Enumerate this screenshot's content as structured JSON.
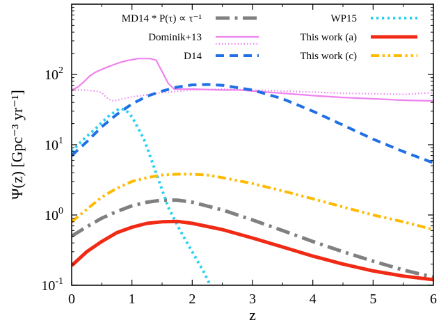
{
  "chart_data": {
    "type": "line",
    "xlabel": "z",
    "ylabel": "Ψ(z) [Gpc⁻³ yr⁻¹]",
    "xlim": [
      0,
      6
    ],
    "ylim": [
      0.1,
      1000
    ],
    "yscale": "log",
    "x_ticks": [
      "0",
      "1",
      "2",
      "3",
      "4",
      "5",
      "6"
    ],
    "y_ticks": [
      {
        "value": 0.1,
        "base": "10",
        "exp": "-1"
      },
      {
        "value": 1,
        "base": "10",
        "exp": "0"
      },
      {
        "value": 10,
        "base": "10",
        "exp": "1"
      },
      {
        "value": 100,
        "base": "10",
        "exp": "2"
      }
    ],
    "grid": false,
    "legend_position": "top",
    "series": [
      {
        "key": "md14",
        "name": "MD14 * P(τ) ∝ τ⁻¹",
        "color": "#808080",
        "dash": "dashdot",
        "width": 5,
        "legend_col": 0,
        "legend_row": 0,
        "x": [
          0,
          0.25,
          0.5,
          0.75,
          1.0,
          1.25,
          1.5,
          1.75,
          2.0,
          2.5,
          3.0,
          3.5,
          4.0,
          4.5,
          5.0,
          5.5,
          6.0
        ],
        "y": [
          0.5,
          0.68,
          0.9,
          1.12,
          1.35,
          1.52,
          1.63,
          1.63,
          1.52,
          1.18,
          0.85,
          0.6,
          0.42,
          0.3,
          0.22,
          0.165,
          0.13
        ]
      },
      {
        "key": "dominik_solid",
        "name": "Dominik+13",
        "color": "#ee82ee",
        "dash": "solid",
        "width": 2.2,
        "legend_col": 0,
        "legend_row": 1,
        "x": [
          0,
          0.1,
          0.2,
          0.3,
          0.4,
          0.5,
          0.6,
          0.7,
          0.8,
          0.9,
          1.0,
          1.1,
          1.2,
          1.3,
          1.4,
          1.5,
          1.6,
          1.7,
          2.0,
          2.5,
          2.8,
          3.0,
          3.5,
          4.0,
          4.5,
          5.0,
          5.5,
          6.0
        ],
        "y": [
          60,
          66,
          78,
          95,
          108,
          118,
          128,
          138,
          148,
          156,
          162,
          168,
          168,
          168,
          160,
          110,
          75,
          62,
          62,
          60,
          60,
          58,
          54,
          50,
          47,
          45,
          43,
          42
        ]
      },
      {
        "key": "dominik_dotted",
        "name": "",
        "color": "#ee82ee",
        "dash": "dotted",
        "width": 2.2,
        "legend_col": 0,
        "legend_row": 1,
        "x": [
          0,
          0.2,
          0.4,
          0.5,
          0.6,
          0.7,
          0.8,
          1.0,
          1.5,
          2.0,
          2.5,
          3.0,
          3.5,
          4.0,
          4.5,
          5.0,
          5.5,
          6.0
        ],
        "y": [
          60,
          60,
          58,
          55,
          45,
          42,
          44,
          48,
          55,
          60,
          62,
          60,
          58,
          56,
          54,
          53,
          52,
          55
        ]
      },
      {
        "key": "d14",
        "name": "D14",
        "color": "#1f6fe5",
        "dash": "dashed",
        "width": 4,
        "legend_col": 0,
        "legend_row": 2,
        "x": [
          0,
          0.25,
          0.5,
          0.75,
          1.0,
          1.25,
          1.5,
          1.75,
          2.0,
          2.25,
          2.5,
          3.0,
          3.5,
          4.0,
          4.5,
          5.0,
          5.5,
          6.0
        ],
        "y": [
          7,
          11,
          18,
          27,
          38,
          49,
          58,
          66,
          71,
          72,
          70,
          60,
          45,
          30,
          19,
          12,
          8,
          5.5
        ]
      },
      {
        "key": "wp15",
        "name": "WP15",
        "color": "#25d0f0",
        "dash": "dotdot",
        "width": 4,
        "legend_col": 1,
        "legend_row": 0,
        "x": [
          0,
          0.2,
          0.4,
          0.6,
          0.8,
          0.9,
          1.0,
          1.2,
          1.4,
          1.6,
          1.8,
          2.0,
          2.2,
          2.3
        ],
        "y": [
          8,
          12,
          17,
          25,
          33,
          31,
          25,
          12,
          4,
          1.3,
          0.6,
          0.3,
          0.15,
          0.1
        ]
      },
      {
        "key": "work_a",
        "name": "This work (a)",
        "color": "#f02a14",
        "dash": "solid",
        "width": 5,
        "legend_col": 1,
        "legend_row": 1,
        "x": [
          0,
          0.25,
          0.5,
          0.75,
          1.0,
          1.25,
          1.5,
          1.75,
          2.0,
          2.5,
          3.0,
          3.5,
          4.0,
          4.5,
          5.0,
          5.5,
          6.0
        ],
        "y": [
          0.19,
          0.3,
          0.42,
          0.56,
          0.67,
          0.76,
          0.8,
          0.81,
          0.76,
          0.62,
          0.47,
          0.35,
          0.26,
          0.2,
          0.16,
          0.135,
          0.12
        ]
      },
      {
        "key": "work_c",
        "name": "This work (c)",
        "color": "#ffba00",
        "dash": "dashdotdot",
        "width": 4,
        "legend_col": 1,
        "legend_row": 2,
        "x": [
          0,
          0.25,
          0.5,
          0.75,
          1.0,
          1.25,
          1.5,
          1.75,
          2.0,
          2.25,
          2.5,
          3.0,
          3.5,
          4.0,
          4.5,
          5.0,
          5.5,
          6.0
        ],
        "y": [
          0.8,
          1.2,
          1.8,
          2.4,
          3.0,
          3.4,
          3.7,
          3.8,
          3.8,
          3.7,
          3.4,
          2.8,
          2.2,
          1.7,
          1.3,
          1.0,
          0.8,
          0.62
        ]
      }
    ]
  }
}
